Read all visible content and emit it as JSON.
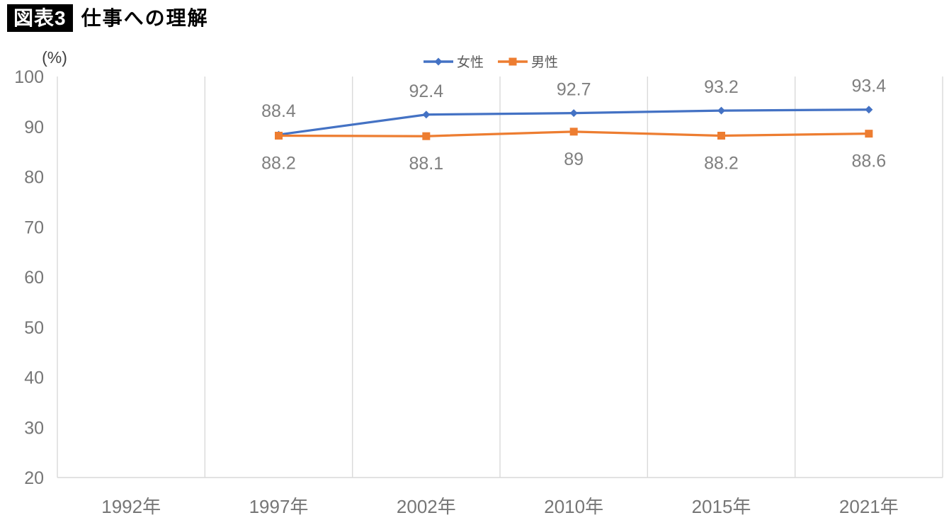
{
  "header": {
    "badge": "図表3",
    "title": "仕事への理解"
  },
  "chart_data": {
    "type": "line",
    "title": "仕事への理解",
    "categories": [
      "1992年",
      "1997年",
      "2002年",
      "2010年",
      "2015年",
      "2021年"
    ],
    "series": [
      {
        "name": "女性",
        "color": "#4472C4",
        "marker": "diamond",
        "label_side": "above",
        "values": [
          null,
          88.4,
          92.4,
          92.7,
          93.2,
          93.4
        ]
      },
      {
        "name": "男性",
        "color": "#ED7D31",
        "marker": "square",
        "label_side": "below",
        "values": [
          null,
          88.2,
          88.1,
          89,
          88.2,
          88.6
        ]
      }
    ],
    "ylabel": "(%)",
    "ylim": [
      20,
      100
    ],
    "yticks": [
      100,
      90,
      80,
      70,
      60,
      50,
      40,
      30,
      20
    ],
    "grid": "vertical-only",
    "legend_position": "top-center",
    "data_labels": true
  },
  "colors": {
    "grid": "#d9d9d9",
    "axis_text": "#767676",
    "data_label_text": "#7f7f7f",
    "legend_text": "#595959",
    "unit_label": "#404040"
  }
}
